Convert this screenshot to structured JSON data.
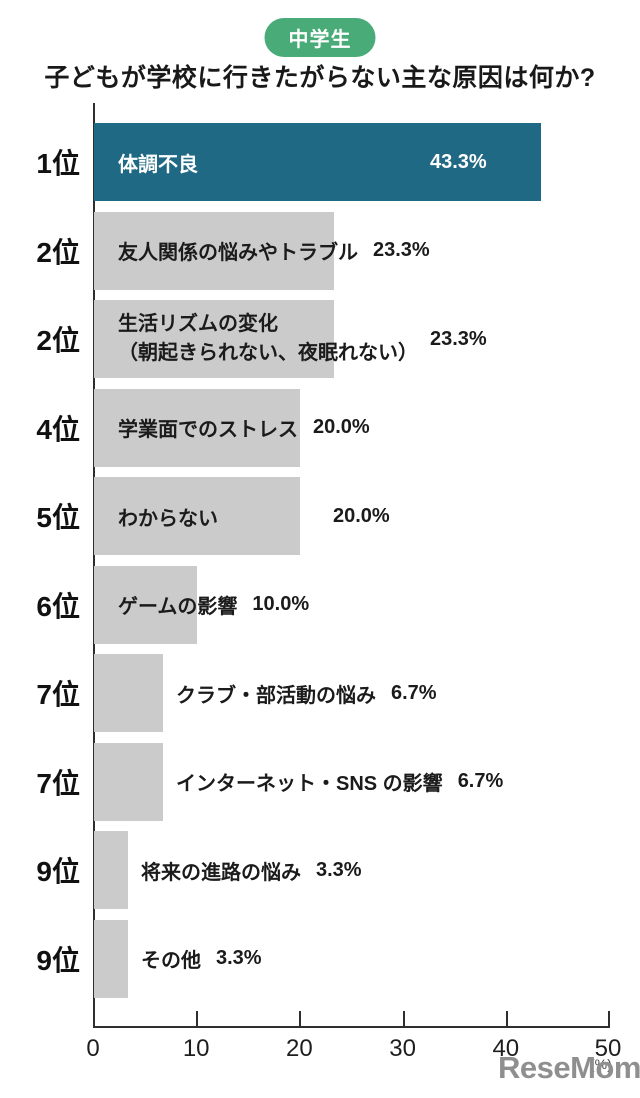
{
  "badge": {
    "label": "中学生"
  },
  "title": "子どもが学校に行きたがらない主な原因は何か?",
  "watermark": "ReseMom.",
  "chart_data": {
    "type": "bar",
    "orientation": "horizontal",
    "title": "子どもが学校に行きたがらない主な原因は何か?",
    "group_badge": "中学生",
    "unit_label": "(%)",
    "xlim": [
      0,
      50
    ],
    "x_ticks": [
      0,
      10,
      20,
      30,
      40,
      50
    ],
    "grid": false,
    "colors": {
      "highlight_bar": "#206984",
      "default_bar": "#CBCBCB",
      "highlight_text": "#ffffff",
      "default_text": "#1b1b1b"
    },
    "rows": [
      {
        "rank": "1位",
        "label": "体調不良",
        "value": 43.3,
        "pct_label": "43.3%",
        "highlight": true
      },
      {
        "rank": "2位",
        "label": "友人関係の悩みやトラブル",
        "value": 23.3,
        "pct_label": "23.3%",
        "highlight": false
      },
      {
        "rank": "2位",
        "label": "生活リズムの変化",
        "label_line2": "（朝起きられない、夜眠れない）",
        "value": 23.3,
        "pct_label": "23.3%",
        "highlight": false
      },
      {
        "rank": "4位",
        "label": "学業面でのストレス",
        "value": 20.0,
        "pct_label": "20.0%",
        "highlight": false
      },
      {
        "rank": "5位",
        "label": "わからない",
        "value": 20.0,
        "pct_label": "20.0%",
        "highlight": false
      },
      {
        "rank": "6位",
        "label": "ゲームの影響",
        "value": 10.0,
        "pct_label": "10.0%",
        "highlight": false
      },
      {
        "rank": "7位",
        "label": "クラブ・部活動の悩み",
        "value": 6.7,
        "pct_label": "6.7%",
        "highlight": false
      },
      {
        "rank": "7位",
        "label": "インターネット・SNS の影響",
        "value": 6.7,
        "pct_label": "6.7%",
        "highlight": false
      },
      {
        "rank": "9位",
        "label": "将来の進路の悩み",
        "value": 3.3,
        "pct_label": "3.3%",
        "highlight": false
      },
      {
        "rank": "9位",
        "label": "その他",
        "value": 3.3,
        "pct_label": "3.3%",
        "highlight": false
      }
    ]
  }
}
